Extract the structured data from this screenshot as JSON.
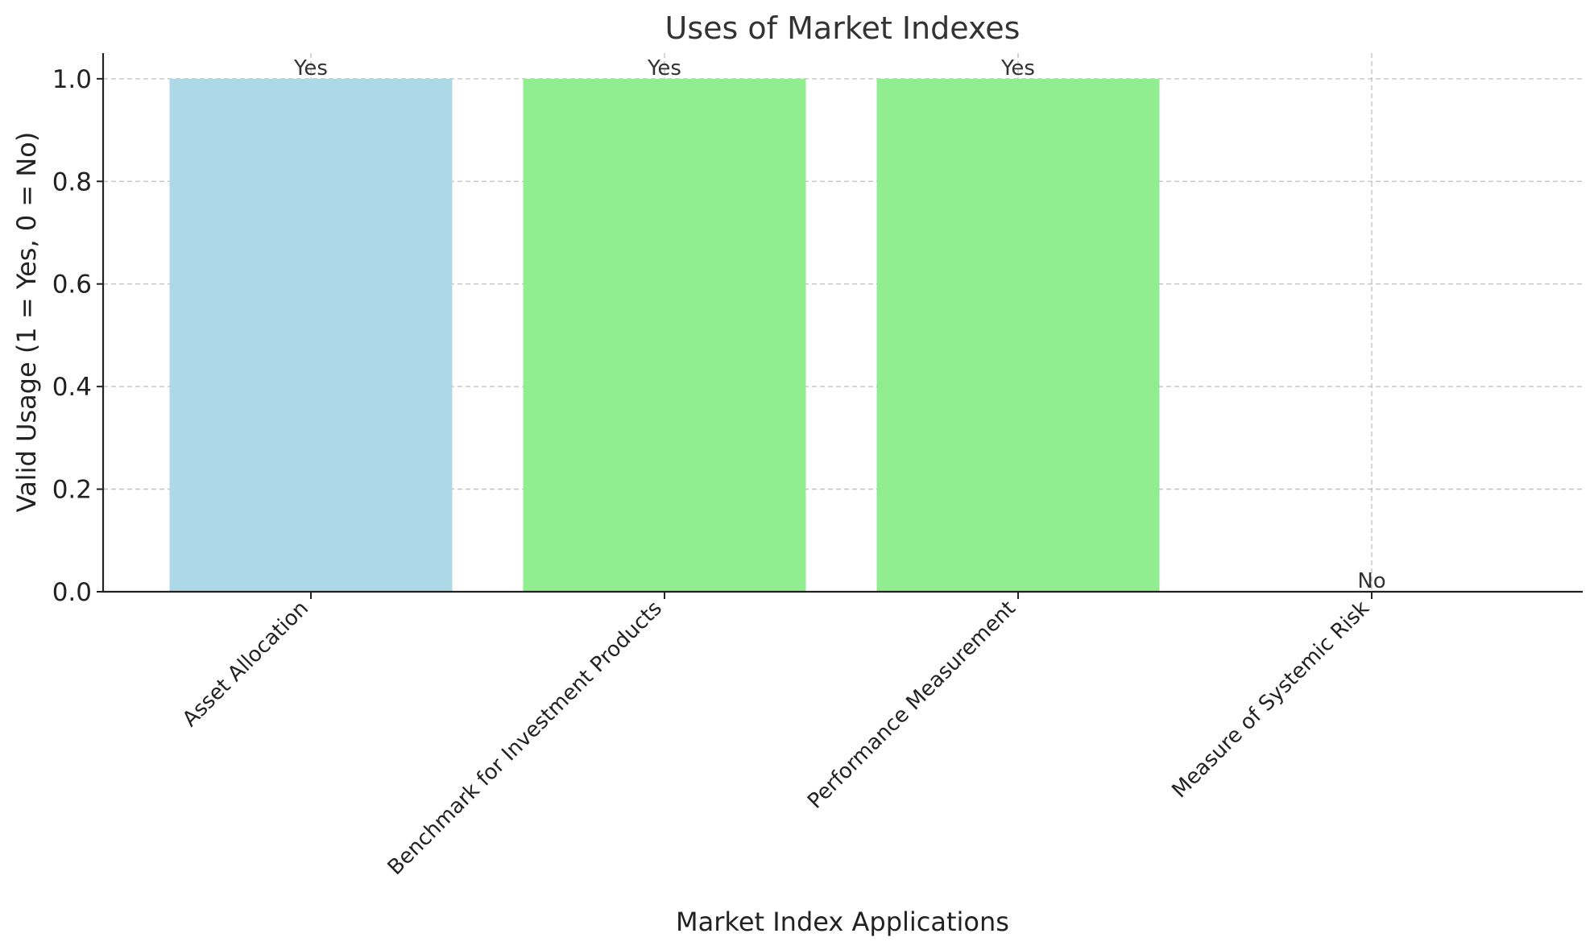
{
  "chart_data": {
    "type": "bar",
    "title": "Uses of Market Indexes",
    "xlabel": "Market Index Applications",
    "ylabel": "Valid Usage (1 = Yes, 0 = No)",
    "categories": [
      "Asset Allocation",
      "Benchmark for Investment Products",
      "Performance Measurement",
      "Measure of Systemic Risk"
    ],
    "values": [
      1,
      1,
      1,
      0
    ],
    "data_labels": [
      "Yes",
      "Yes",
      "Yes",
      "No"
    ],
    "bar_colors": [
      "#add8e6",
      "#90ee90",
      "#90ee90",
      "#90ee90"
    ],
    "ylim": [
      0,
      1.05
    ],
    "yticks": [
      "0.0",
      "0.2",
      "0.4",
      "0.6",
      "0.8",
      "1.0"
    ],
    "grid": true,
    "legend": "none"
  }
}
